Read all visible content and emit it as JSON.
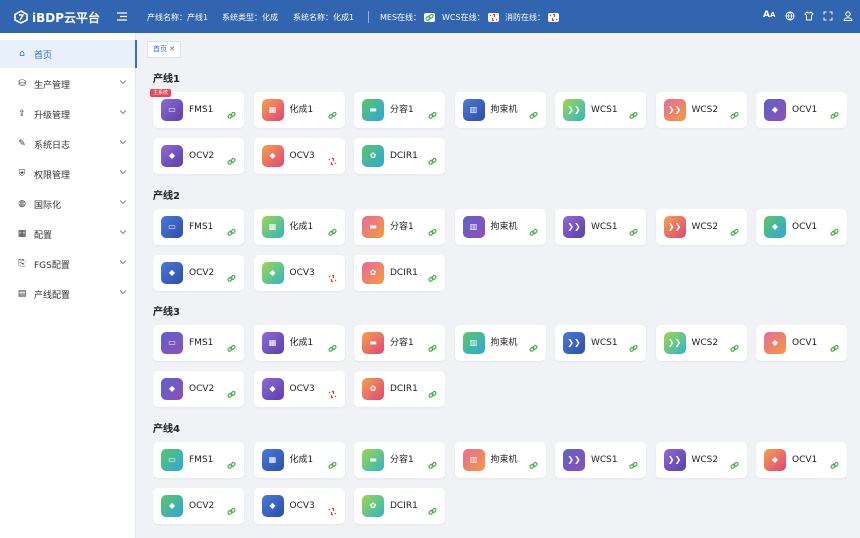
{
  "header": {
    "logo": "iBDP云平台",
    "items": [
      "产线名称：产线1",
      "系统类型：化成",
      "系统名称：化成1"
    ],
    "status": [
      {
        "label": "MES在线：",
        "online": true
      },
      {
        "label": "WCS在线：",
        "online": false
      },
      {
        "label": "消防在线：",
        "online": false
      }
    ]
  },
  "sidebar": {
    "items": [
      "首页",
      "生产管理",
      "升级管理",
      "系统日志",
      "权限管理",
      "国际化",
      "配置",
      "FGS配置",
      "产线配置"
    ]
  },
  "tabs": [
    "首页"
  ],
  "lines": [
    {
      "title": "产线1",
      "badge": "主系统",
      "devices": [
        {
          "name": "FMS1",
          "online": true
        },
        {
          "name": "化成1",
          "online": true
        },
        {
          "name": "分容1",
          "online": true
        },
        {
          "name": "拘束机",
          "online": true
        },
        {
          "name": "WCS1",
          "online": true
        },
        {
          "name": "WCS2",
          "online": true
        },
        {
          "name": "OCV1",
          "online": true
        },
        {
          "name": "OCV2",
          "online": true
        },
        {
          "name": "OCV3",
          "online": false
        },
        {
          "name": "DCIR1",
          "online": true
        }
      ]
    },
    {
      "title": "产线2",
      "devices": [
        {
          "name": "FMS1",
          "online": true
        },
        {
          "name": "化成1",
          "online": true
        },
        {
          "name": "分容1",
          "online": true
        },
        {
          "name": "拘束机",
          "online": true
        },
        {
          "name": "WCS1",
          "online": true
        },
        {
          "name": "WCS2",
          "online": true
        },
        {
          "name": "OCV1",
          "online": true
        },
        {
          "name": "OCV2",
          "online": true
        },
        {
          "name": "OCV3",
          "online": false
        },
        {
          "name": "DCIR1",
          "online": true
        }
      ]
    },
    {
      "title": "产线3",
      "devices": [
        {
          "name": "FMS1",
          "online": true
        },
        {
          "name": "化成1",
          "online": true
        },
        {
          "name": "分容1",
          "online": true
        },
        {
          "name": "拘束机",
          "online": true
        },
        {
          "name": "WCS1",
          "online": true
        },
        {
          "name": "WCS2",
          "online": true
        },
        {
          "name": "OCV1",
          "online": true
        },
        {
          "name": "OCV2",
          "online": true
        },
        {
          "name": "OCV3",
          "online": false
        },
        {
          "name": "DCIR1",
          "online": true
        }
      ]
    },
    {
      "title": "产线4",
      "devices": [
        {
          "name": "FMS1",
          "online": true
        },
        {
          "name": "化成1",
          "online": true
        },
        {
          "name": "分容1",
          "online": true
        },
        {
          "name": "拘束机",
          "online": true
        },
        {
          "name": "WCS1",
          "online": true
        },
        {
          "name": "WCS2",
          "online": true
        },
        {
          "name": "OCV1",
          "online": true
        },
        {
          "name": "OCV2",
          "online": true
        },
        {
          "name": "OCV3",
          "online": false
        },
        {
          "name": "DCIR1",
          "online": true
        }
      ]
    }
  ]
}
